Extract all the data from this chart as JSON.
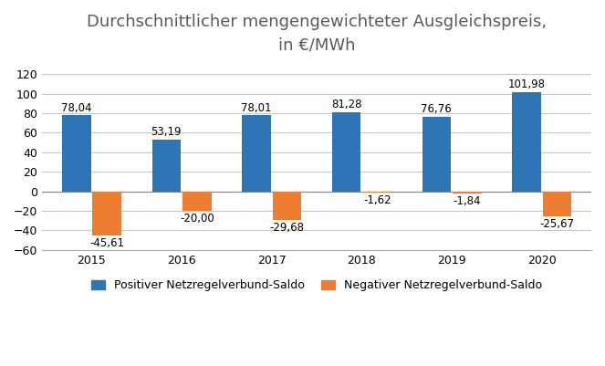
{
  "title": "Durchschnittlicher mengengewichteter Ausgleichspreis,\nin €/MWh",
  "years": [
    2015,
    2016,
    2017,
    2018,
    2019,
    2020
  ],
  "positive_values": [
    78.04,
    53.19,
    78.01,
    81.28,
    76.76,
    101.98
  ],
  "negative_values": [
    -45.61,
    -20.0,
    -29.68,
    -1.62,
    -1.84,
    -25.67
  ],
  "positive_color": "#2E75B6",
  "negative_color": "#ED7D31",
  "ylim": [
    -60,
    130
  ],
  "yticks": [
    -60,
    -40,
    -20,
    0,
    20,
    40,
    60,
    80,
    100,
    120
  ],
  "legend_pos_label": "Positiver Netzregelverbund-Saldo",
  "legend_neg_label": "Negativer Netzregelverbund-Saldo",
  "background_color": "#ffffff",
  "grid_color": "#c8c8c8",
  "bar_width": 0.32,
  "title_fontsize": 13,
  "title_color": "#595959",
  "label_fontsize": 8.5,
  "tick_fontsize": 9,
  "legend_fontsize": 9
}
